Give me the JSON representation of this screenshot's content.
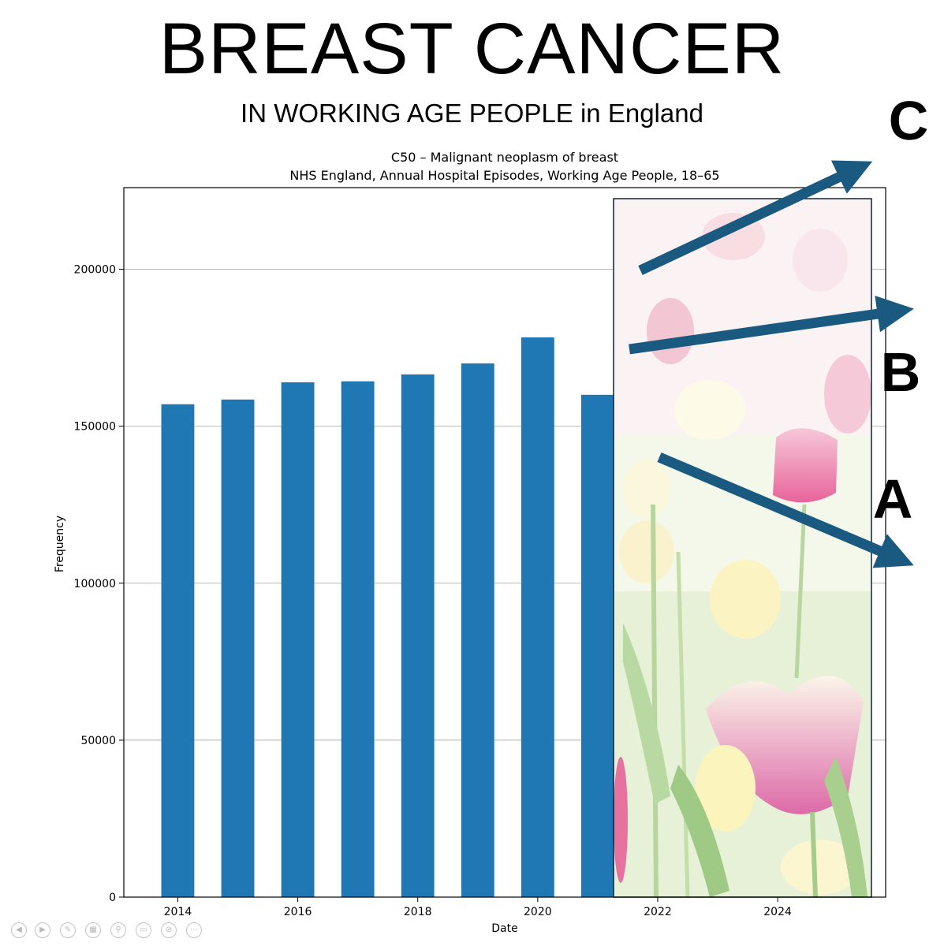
{
  "slide": {
    "headline": "BREAST CANCER",
    "subheadline": "IN WORKING AGE PEOPLE in England"
  },
  "chart_data": {
    "type": "bar",
    "title": "C50 – Malignant neoplasm of breast",
    "subtitle": "NHS England, Annual Hospital Episodes, Working Age People, 18–65",
    "xlabel": "Date",
    "ylabel": "Frequency",
    "x": [
      2014,
      2015,
      2016,
      2017,
      2018,
      2019,
      2020,
      2021
    ],
    "values": [
      157000,
      158500,
      164000,
      164300,
      166500,
      170000,
      178300,
      160000
    ],
    "bar_color": "#1f77b4",
    "xlim": [
      2013.1,
      2025.8
    ],
    "ylim": [
      0,
      226000
    ],
    "x_ticks": [
      "2014",
      "2016",
      "2018",
      "2020",
      "2022",
      "2024"
    ],
    "y_ticks": [
      "0",
      "50000",
      "100000",
      "150000",
      "200000"
    ],
    "grid": "horizontal",
    "annotations": {
      "photo_panel": "tulip field photo covering 2021.3–2025.6",
      "arrow_color": "#1b5a80",
      "arrows": [
        {
          "label": "C",
          "direction": "up"
        },
        {
          "label": "B",
          "direction": "slightly up"
        },
        {
          "label": "A",
          "direction": "down"
        }
      ]
    }
  },
  "controls": [
    "previous-icon",
    "next-icon",
    "pen-icon",
    "slides-icon",
    "zoom-icon",
    "subtitles-icon",
    "no-pointer-icon",
    "more-icon"
  ]
}
